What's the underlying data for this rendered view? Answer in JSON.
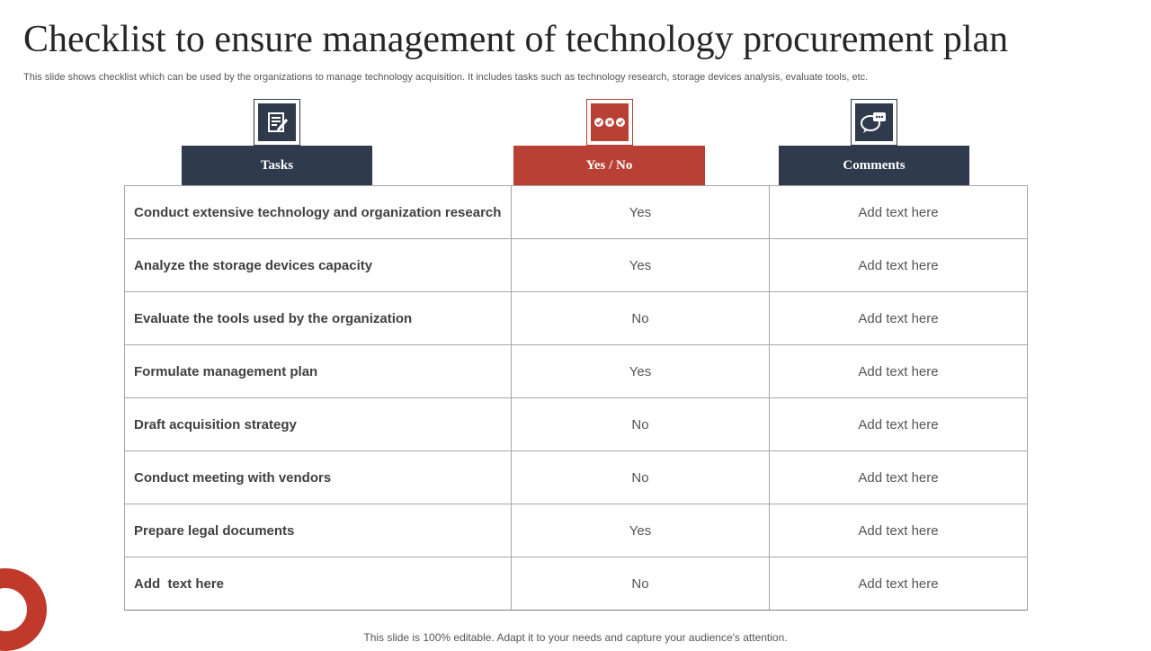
{
  "title": "Checklist to ensure management of technology procurement plan",
  "subtitle": "This slide shows checklist which can be used by the organizations to manage technology acquisition. It includes tasks such as technology research, storage devices analysis, evaluate tools, etc.",
  "columns": {
    "tasks": {
      "label": "Tasks",
      "icon": "document-edit-icon"
    },
    "yes_no": {
      "label": "Yes / No",
      "icon": "checkmarks-icon"
    },
    "comments": {
      "label": "Comments",
      "icon": "chat-bubbles-icon"
    }
  },
  "rows": [
    {
      "task": "Conduct extensive technology and organization research",
      "answer": "Yes",
      "comment": "Add text here"
    },
    {
      "task": "Analyze the storage devices capacity",
      "answer": "Yes",
      "comment": "Add text here"
    },
    {
      "task": "Evaluate the tools used by the organization",
      "answer": "No",
      "comment": "Add text here"
    },
    {
      "task": "Formulate management plan",
      "answer": "Yes",
      "comment": "Add text here"
    },
    {
      "task": "Draft acquisition strategy",
      "answer": "No",
      "comment": "Add text here"
    },
    {
      "task": "Conduct meeting with vendors",
      "answer": "No",
      "comment": "Add text here"
    },
    {
      "task": "Prepare legal documents",
      "answer": "Yes",
      "comment": "Add text here"
    },
    {
      "task": "Add  text here",
      "answer": "No",
      "comment": "Add text here"
    }
  ],
  "footer": "This slide is 100% editable. Adapt it to your needs and capture your audience's attention.",
  "colors": {
    "navy": "#2f3a4c",
    "red": "#b94034"
  }
}
